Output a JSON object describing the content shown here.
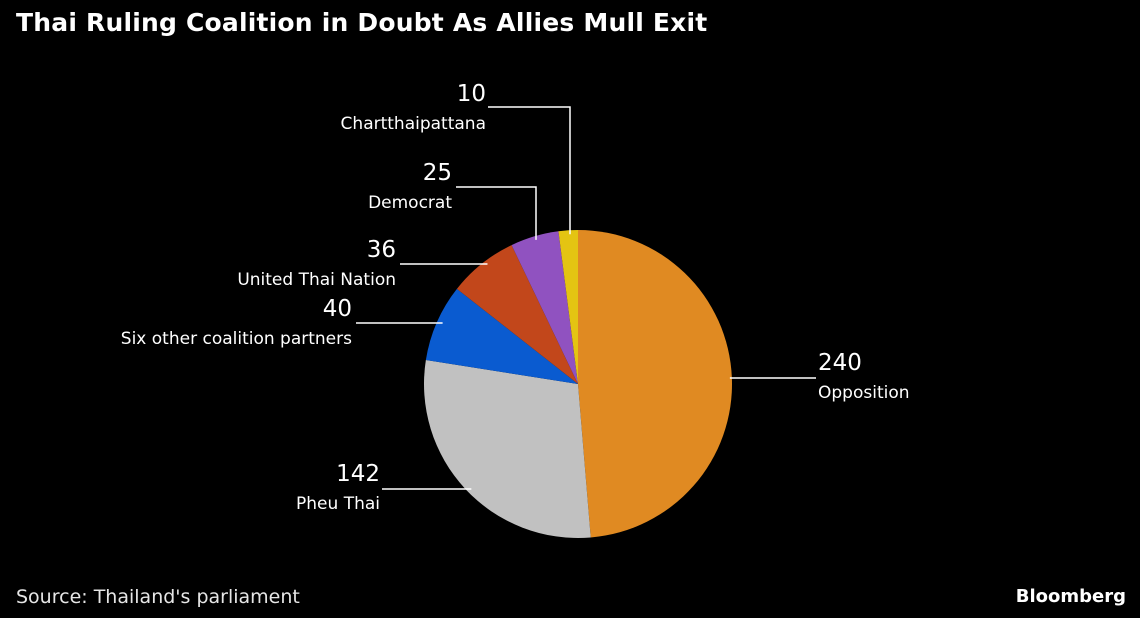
{
  "chart_data": {
    "type": "pie",
    "title": "Thai Ruling Coalition in Doubt As Allies Mull Exit",
    "slices": [
      {
        "label": "Opposition",
        "value": 240,
        "color": "#E08A22"
      },
      {
        "label": "Pheu Thai",
        "value": 142,
        "color": "#C1C1C1"
      },
      {
        "label": "Six other coalition partners",
        "value": 40,
        "color": "#0A5BD0"
      },
      {
        "label": "United Thai Nation",
        "value": 36,
        "color": "#C2471B"
      },
      {
        "label": "Democrat",
        "value": 25,
        "color": "#9052C0"
      },
      {
        "label": "Chartthaipattana",
        "value": 10,
        "color": "#E4C412"
      }
    ]
  },
  "footer": {
    "source": "Source: Thailand's parliament",
    "brand": "Bloomberg"
  }
}
